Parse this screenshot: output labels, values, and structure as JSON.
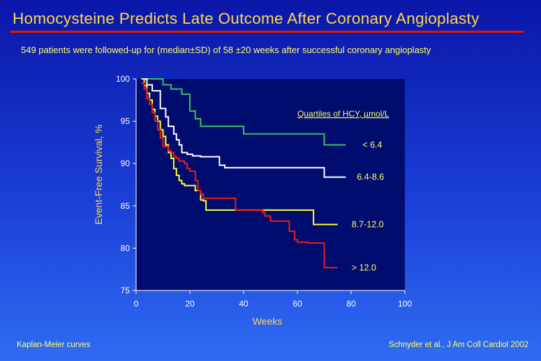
{
  "header": {
    "title": "Homocysteine Predicts Late Outcome After Coronary Angioplasty",
    "subtitle": "549 patients were followed-up for (median±SD) of 58 ±20 weeks after successful coronary angioplasty"
  },
  "footer": {
    "left": "Kaplan-Meier curves",
    "right": "Schnyder et al., J Am Coll Cardiol 2002"
  },
  "colors": {
    "plot_bg": "#000c6e",
    "axis": "#ffffff",
    "green": "#3cbf64",
    "white": "#ffffff",
    "yellow": "#ffff33",
    "red": "#ee1c1c"
  },
  "chart_data": {
    "type": "line",
    "title": "",
    "xlabel": "Weeks",
    "ylabel": "Event-Free Survival, %",
    "xlim": [
      0,
      100
    ],
    "ylim": [
      75,
      100
    ],
    "xticks": [
      "0",
      "20",
      "40",
      "60",
      "80",
      "100"
    ],
    "yticks": [
      "75",
      "80",
      "85",
      "90",
      "95",
      "100"
    ],
    "legend_title": "Quartiles of HCY, µmol/L",
    "series": [
      {
        "name": "< 6.4",
        "color_key": "green",
        "x": [
          2,
          5,
          10,
          13,
          17,
          20,
          22,
          24,
          40,
          70,
          78
        ],
        "y": [
          100,
          100,
          99.3,
          98.8,
          98.2,
          96.2,
          95.3,
          94.4,
          93.5,
          92.2,
          92.2
        ]
      },
      {
        "name": "6.4-8.6",
        "color_key": "white",
        "x": [
          2,
          4,
          6,
          9,
          11,
          12,
          14,
          15,
          16,
          17,
          19,
          21,
          24,
          31,
          33,
          70,
          78
        ],
        "y": [
          100,
          99.3,
          98.6,
          96.5,
          95.5,
          94.4,
          93.5,
          92.8,
          92.2,
          91.3,
          91.1,
          90.9,
          90.8,
          89.8,
          89.5,
          88.4,
          88.4
        ]
      },
      {
        "name": "8.7-12.0",
        "color_key": "yellow",
        "x": [
          2,
          3,
          4,
          5,
          6,
          7,
          8,
          9,
          10,
          11,
          12,
          13,
          14,
          15,
          16,
          17,
          18,
          19,
          20,
          22,
          24,
          25,
          26,
          27,
          30,
          35,
          40,
          45,
          50,
          55,
          60,
          65,
          66,
          75
        ],
        "y": [
          100,
          99.2,
          98.3,
          97.5,
          96.4,
          95.6,
          95.0,
          94.0,
          93.2,
          92.2,
          91.3,
          90.6,
          89.4,
          88.6,
          88.0,
          87.6,
          87.4,
          87.4,
          87.4,
          86.8,
          85.7,
          85.6,
          84.5,
          84.5,
          84.5,
          84.5,
          84.5,
          84.5,
          84.5,
          84.5,
          84.5,
          84.5,
          82.8,
          82.8
        ]
      },
      {
        "name": "> 12.0",
        "color_key": "red",
        "x": [
          2,
          3,
          4,
          5,
          6,
          7,
          8,
          9,
          10,
          12,
          13,
          14,
          15,
          16,
          18,
          19,
          20,
          22,
          23,
          24,
          25,
          37,
          47,
          48,
          50,
          57,
          59,
          60,
          64,
          70,
          75
        ],
        "y": [
          99.5,
          98.8,
          97.7,
          97.0,
          96.0,
          95.0,
          94.0,
          93.0,
          92.0,
          91.5,
          91.3,
          90.8,
          90.6,
          90.3,
          90.0,
          89.4,
          89.1,
          88.0,
          86.8,
          86.4,
          85.9,
          84.5,
          84.2,
          83.8,
          83.2,
          82.0,
          81.0,
          80.7,
          80.6,
          77.7,
          77.7
        ]
      }
    ]
  }
}
